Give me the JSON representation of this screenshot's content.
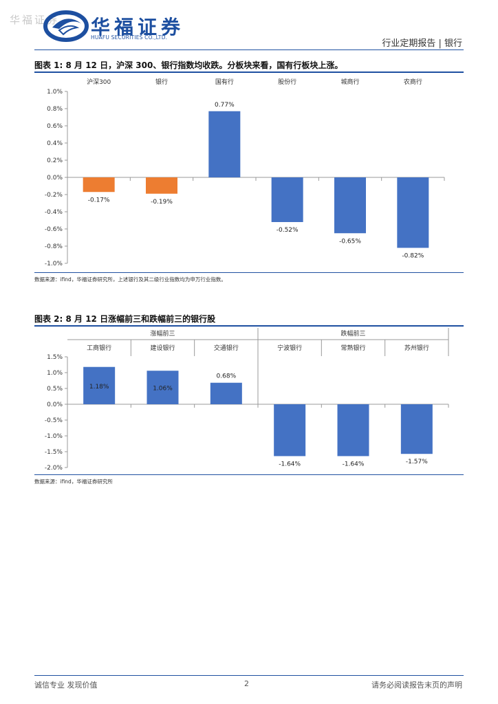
{
  "watermark": "华福证券",
  "brand": {
    "name_cn": "华福证券",
    "name_en": "HUAFU SECURITIES CO.,LTD."
  },
  "header": {
    "report_type": "行业定期报告 | 银行"
  },
  "figure1": {
    "title": "图表 1:  8 月 12 日，沪深 300、银行指数均收跌。分板块来看，国有行板块上涨。",
    "source": "数据来源：ifind，华福证券研究所，上述银行及其二级行业指数均为申万行业指数。"
  },
  "figure2": {
    "title": "图表 2:  8 月 12 日涨幅前三和跌幅前三的银行股",
    "source": "数据来源：ifind，华福证券研究所"
  },
  "chart_data": [
    {
      "type": "bar",
      "categories": [
        "沪深300",
        "银行",
        "国有行",
        "股份行",
        "城商行",
        "农商行"
      ],
      "values": [
        -0.17,
        -0.19,
        0.77,
        -0.52,
        -0.65,
        -0.82
      ],
      "data_labels": [
        "-0.17%",
        "-0.19%",
        "0.77%",
        "-0.52%",
        "-0.65%",
        "-0.82%"
      ],
      "y_ticks": [
        "1.0%",
        "0.8%",
        "0.6%",
        "0.4%",
        "0.2%",
        "0.0%",
        "-0.2%",
        "-0.4%",
        "-0.6%",
        "-0.8%",
        "-1.0%"
      ],
      "ylim": [
        -1.0,
        1.0
      ],
      "colors": [
        "#ed7d31",
        "#ed7d31",
        "#4472c4",
        "#4472c4",
        "#4472c4",
        "#4472c4"
      ],
      "grid": false
    },
    {
      "type": "bar",
      "groups": [
        "涨幅前三",
        "跌幅前三"
      ],
      "categories": [
        "工商银行",
        "建设银行",
        "交通银行",
        "宁波银行",
        "常熟银行",
        "苏州银行"
      ],
      "values": [
        1.18,
        1.06,
        0.68,
        -1.64,
        -1.64,
        -1.57
      ],
      "data_labels": [
        "1.18%",
        "1.06%",
        "0.68%",
        "-1.64%",
        "-1.64%",
        "-1.57%"
      ],
      "y_ticks": [
        "1.5%",
        "1.0%",
        "0.5%",
        "0.0%",
        "-0.5%",
        "-1.0%",
        "-1.5%",
        "-2.0%"
      ],
      "ylim": [
        -2.0,
        1.5
      ],
      "colors": [
        "#4472c4",
        "#4472c4",
        "#4472c4",
        "#4472c4",
        "#4472c4",
        "#4472c4"
      ],
      "grid": false
    }
  ],
  "footer": {
    "left": "诚信专业  发现价值",
    "page": "2",
    "right": "请务必阅读报告末页的声明"
  }
}
